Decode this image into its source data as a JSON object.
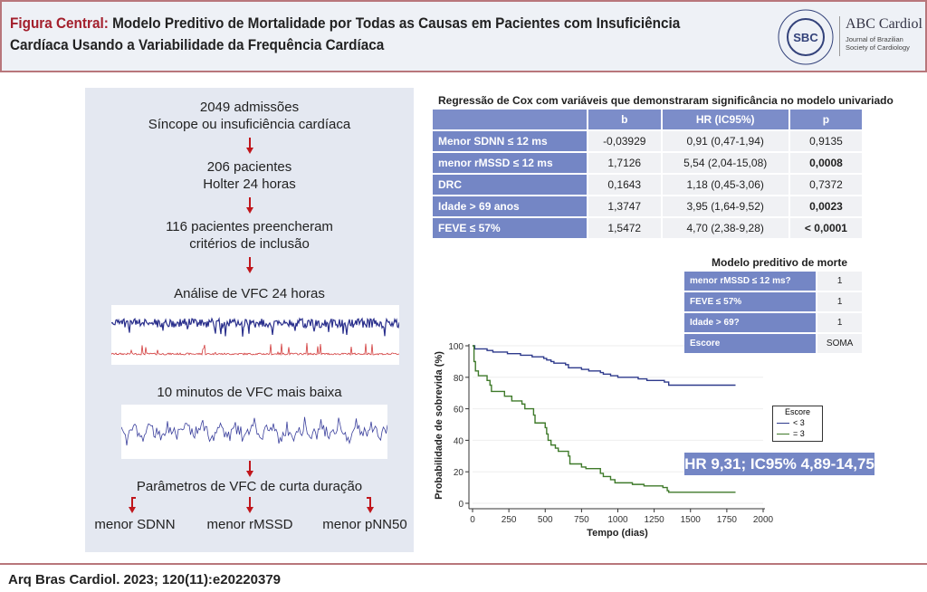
{
  "header": {
    "title_prefix": "Figura Central:",
    "title_line1": " Modelo Preditivo de Mortalidade por Todas as Causas em Pacientes com Insuficiência",
    "title_line2": "Cardíaca Usando a Variabilidade da Frequência Cardíaca",
    "logo_name": "ABC Cardiol",
    "logo_sub": "Journal of Brazilian Society of Cardiology",
    "logo_badge": "SBC"
  },
  "flow": {
    "step1a": "2049 admissões",
    "step1b": "Síncope ou insuficiência cardíaca",
    "step2a": "206 pacientes",
    "step2b": "Holter 24 horas",
    "step3a": "116 pacientes preencheram",
    "step3b": "critérios de inclusão",
    "step4": "Análise de VFC 24 horas",
    "step5": "10 minutos de VFC mais baixa",
    "step6": "Parâmetros de VFC de curta duração",
    "out1": "menor SDNN",
    "out2": "menor rMSSD",
    "out3": "menor pNN50"
  },
  "cox": {
    "title": "Regressão de Cox com variáveis que demonstraram significância no modelo univariado",
    "headers": [
      "",
      "b",
      "HR (IC95%)",
      "p"
    ],
    "rows": [
      [
        "Menor SDNN ≤ 12 ms",
        "-0,03929",
        "0,91 (0,47-1,94)",
        "0,9135"
      ],
      [
        "menor rMSSD ≤ 12 ms",
        "1,7126",
        "5,54 (2,04-15,08)",
        "0,0008"
      ],
      [
        "DRC",
        "0,1643",
        "1,18 (0,45-3,06)",
        "0,7372"
      ],
      [
        "Idade > 69 anos",
        "1,3747",
        "3,95 (1,64-9,52)",
        "0,0023"
      ],
      [
        "FEVE ≤ 57%",
        "1,5472",
        "4,70 (2,38-9,28)",
        "< 0,0001"
      ]
    ]
  },
  "model": {
    "title": "Modelo preditivo de morte",
    "rows": [
      [
        "menor rMSSD ≤ 12 ms?",
        "1"
      ],
      [
        "FEVE ≤ 57%",
        "1"
      ],
      [
        "Idade > 69?",
        "1"
      ],
      [
        "Escore",
        "SOMA"
      ]
    ]
  },
  "hr_text": "HR 9,31; IC95% 4,89-14,75",
  "footer": "Arq Bras Cardiol. 2023; 120(11):e20220379",
  "chart_data": {
    "type": "line",
    "xlabel": "Tempo (dias)",
    "ylabel": "Probabilidade de sobrevida (%)",
    "xlim": [
      0,
      2000
    ],
    "ylim": [
      0,
      100
    ],
    "xticks": [
      "0",
      "250",
      "500",
      "750",
      "1000",
      "1250",
      "1500",
      "1750",
      "2000"
    ],
    "yticks": [
      "0",
      "20",
      "40",
      "60",
      "80",
      "100"
    ],
    "legend": {
      "title": "Escore",
      "placement": "right"
    },
    "series": [
      {
        "name": "< 3",
        "color": "#2e3a8c",
        "points": [
          [
            0,
            100
          ],
          [
            15,
            98
          ],
          [
            100,
            97
          ],
          [
            140,
            96
          ],
          [
            240,
            95
          ],
          [
            330,
            94
          ],
          [
            410,
            93
          ],
          [
            490,
            92
          ],
          [
            510,
            91
          ],
          [
            540,
            90
          ],
          [
            560,
            89
          ],
          [
            640,
            88
          ],
          [
            660,
            86
          ],
          [
            750,
            85
          ],
          [
            800,
            84
          ],
          [
            880,
            83
          ],
          [
            900,
            82
          ],
          [
            950,
            81
          ],
          [
            1000,
            80
          ],
          [
            1140,
            79
          ],
          [
            1200,
            78
          ],
          [
            1320,
            77
          ],
          [
            1350,
            75
          ],
          [
            1810,
            75
          ]
        ]
      },
      {
        "name": "= 3",
        "color": "#3f7a2a",
        "points": [
          [
            0,
            100
          ],
          [
            10,
            90
          ],
          [
            20,
            84
          ],
          [
            40,
            81
          ],
          [
            100,
            78
          ],
          [
            120,
            75
          ],
          [
            130,
            71
          ],
          [
            220,
            68
          ],
          [
            270,
            65
          ],
          [
            340,
            63
          ],
          [
            360,
            60
          ],
          [
            420,
            56
          ],
          [
            430,
            51
          ],
          [
            490,
            51
          ],
          [
            500,
            48
          ],
          [
            510,
            44
          ],
          [
            520,
            40
          ],
          [
            540,
            37
          ],
          [
            570,
            35
          ],
          [
            590,
            33
          ],
          [
            660,
            30
          ],
          [
            670,
            25
          ],
          [
            750,
            23
          ],
          [
            780,
            22
          ],
          [
            870,
            22
          ],
          [
            880,
            19
          ],
          [
            900,
            17
          ],
          [
            950,
            15
          ],
          [
            980,
            13
          ],
          [
            1100,
            12
          ],
          [
            1180,
            11
          ],
          [
            1310,
            10
          ],
          [
            1340,
            8
          ],
          [
            1350,
            7
          ],
          [
            1810,
            7
          ]
        ]
      }
    ]
  }
}
